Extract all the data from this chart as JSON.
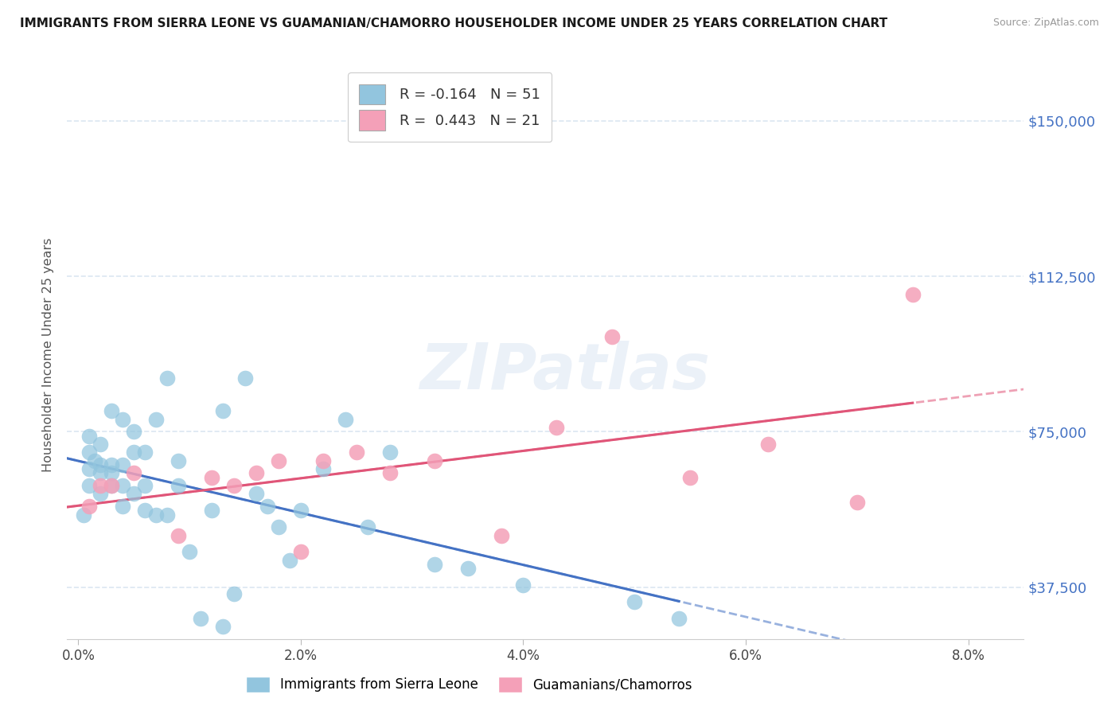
{
  "title": "IMMIGRANTS FROM SIERRA LEONE VS GUAMANIAN/CHAMORRO HOUSEHOLDER INCOME UNDER 25 YEARS CORRELATION CHART",
  "source": "Source: ZipAtlas.com",
  "ylabel": "Householder Income Under 25 years",
  "xtick_vals": [
    0.0,
    0.02,
    0.04,
    0.06,
    0.08
  ],
  "xtick_labels": [
    "0.0%",
    "2.0%",
    "4.0%",
    "6.0%",
    "8.0%"
  ],
  "ytick_vals": [
    37500,
    75000,
    112500,
    150000
  ],
  "ytick_labels": [
    "$37,500",
    "$75,000",
    "$112,500",
    "$150,000"
  ],
  "ylim": [
    25000,
    162000
  ],
  "xlim": [
    -0.001,
    0.085
  ],
  "series1_label": "Immigrants from Sierra Leone",
  "series1_color": "#92c5de",
  "series1_line_color": "#4472c4",
  "series1_R": "-0.164",
  "series1_N": "51",
  "series2_label": "Guamanians/Chamorros",
  "series2_color": "#f4a0b8",
  "series2_line_color": "#e05578",
  "series2_R": "0.443",
  "series2_N": "21",
  "right_label_color": "#4472c4",
  "grid_color": "#dce6f1",
  "background_color": "#ffffff",
  "watermark": "ZIPatlas",
  "series1_x": [
    0.0005,
    0.001,
    0.001,
    0.001,
    0.001,
    0.0015,
    0.002,
    0.002,
    0.002,
    0.002,
    0.003,
    0.003,
    0.003,
    0.003,
    0.004,
    0.004,
    0.004,
    0.004,
    0.005,
    0.005,
    0.005,
    0.006,
    0.006,
    0.006,
    0.007,
    0.007,
    0.008,
    0.008,
    0.009,
    0.009,
    0.01,
    0.011,
    0.012,
    0.013,
    0.013,
    0.014,
    0.015,
    0.016,
    0.017,
    0.018,
    0.019,
    0.02,
    0.022,
    0.024,
    0.026,
    0.028,
    0.032,
    0.035,
    0.04,
    0.05,
    0.054
  ],
  "series1_y": [
    55000,
    62000,
    66000,
    70000,
    74000,
    68000,
    60000,
    65000,
    67000,
    72000,
    62000,
    65000,
    67000,
    80000,
    57000,
    62000,
    67000,
    78000,
    60000,
    70000,
    75000,
    56000,
    62000,
    70000,
    55000,
    78000,
    55000,
    88000,
    62000,
    68000,
    46000,
    30000,
    56000,
    28000,
    80000,
    36000,
    88000,
    60000,
    57000,
    52000,
    44000,
    56000,
    66000,
    78000,
    52000,
    70000,
    43000,
    42000,
    38000,
    34000,
    30000
  ],
  "series2_x": [
    0.001,
    0.002,
    0.003,
    0.005,
    0.009,
    0.012,
    0.014,
    0.016,
    0.018,
    0.02,
    0.022,
    0.025,
    0.028,
    0.032,
    0.038,
    0.043,
    0.048,
    0.055,
    0.062,
    0.07,
    0.075
  ],
  "series2_y": [
    57000,
    62000,
    62000,
    65000,
    50000,
    64000,
    62000,
    65000,
    68000,
    46000,
    68000,
    70000,
    65000,
    68000,
    50000,
    76000,
    98000,
    64000,
    72000,
    58000,
    108000
  ]
}
